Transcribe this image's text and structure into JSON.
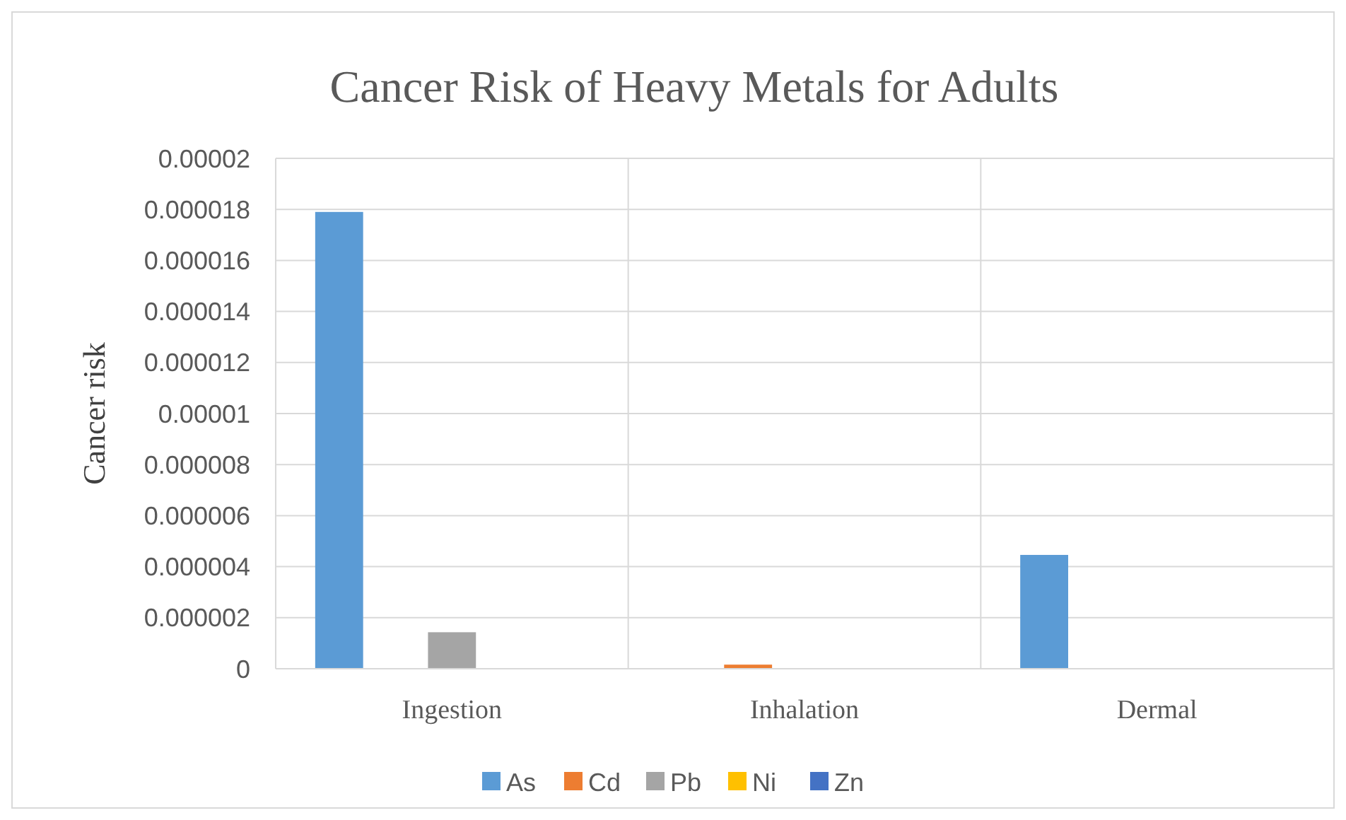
{
  "chart_data": {
    "type": "bar",
    "title": "Cancer Risk of Heavy Metals for Adults",
    "ylabel": "Cancer risk",
    "categories": [
      "Ingestion",
      "Inhalation",
      "Dermal"
    ],
    "series": [
      {
        "name": "As",
        "color": "#5b9bd5",
        "values": [
          1.79e-05,
          0,
          4.46e-06
        ]
      },
      {
        "name": "Cd",
        "color": "#ed7d31",
        "values": [
          0,
          1.6e-07,
          0
        ]
      },
      {
        "name": "Pb",
        "color": "#a5a5a5",
        "values": [
          1.43e-06,
          0,
          0
        ]
      },
      {
        "name": "Ni",
        "color": "#ffc000",
        "values": [
          0,
          0,
          0
        ]
      },
      {
        "name": "Zn",
        "color": "#4472c4",
        "values": [
          0,
          0,
          0
        ]
      }
    ],
    "ylim": [
      0,
      2e-05
    ],
    "yticks": [
      {
        "value": 0,
        "label": "0"
      },
      {
        "value": 2e-06,
        "label": "0.000002"
      },
      {
        "value": 4e-06,
        "label": "0.000004"
      },
      {
        "value": 6e-06,
        "label": "0.000006"
      },
      {
        "value": 8e-06,
        "label": "0.000008"
      },
      {
        "value": 1e-05,
        "label": "0.00001"
      },
      {
        "value": 1.2e-05,
        "label": "0.000012"
      },
      {
        "value": 1.4e-05,
        "label": "0.000014"
      },
      {
        "value": 1.6e-05,
        "label": "0.000016"
      },
      {
        "value": 1.8e-05,
        "label": "0.000018"
      },
      {
        "value": 2e-05,
        "label": "0.00002"
      }
    ],
    "grid": true,
    "legend": "bottom"
  }
}
